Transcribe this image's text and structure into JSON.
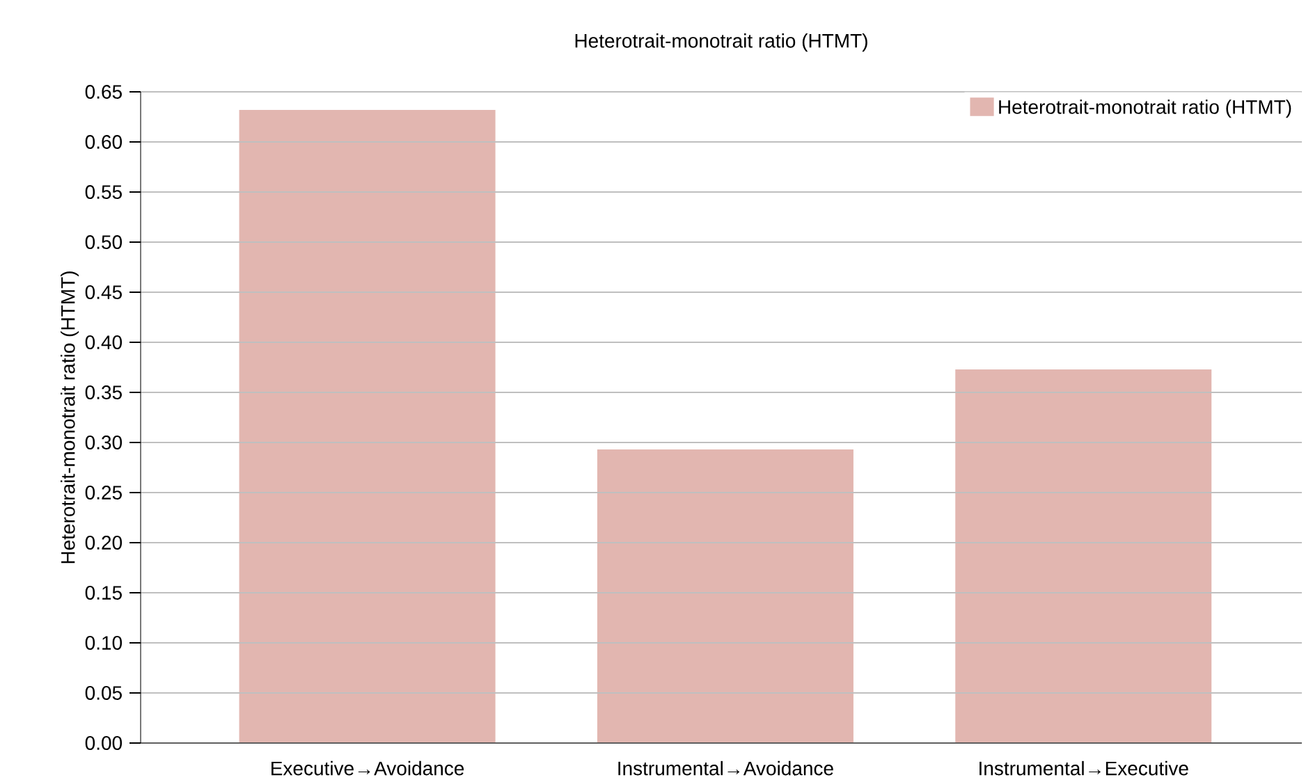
{
  "chart_data": {
    "type": "bar",
    "title": "Heterotrait-monotrait ratio (HTMT)",
    "ylabel": "Heterotrait-monotrait ratio (HTMT)",
    "categories": [
      "Executive→Avoidance",
      "Instrumental→Avoidance",
      "Instrumental→Executive"
    ],
    "series": [
      {
        "name": "Heterotrait-monotrait ratio (HTMT)",
        "color": "#e2b6b0",
        "values": [
          0.632,
          0.293,
          0.373
        ]
      }
    ],
    "ylim": [
      0,
      0.65
    ],
    "yticks": [
      {
        "value": 0,
        "label": "0.00"
      },
      {
        "value": 0.05,
        "label": "0.05"
      },
      {
        "value": 0.1,
        "label": "0.10"
      },
      {
        "value": 0.15,
        "label": "0.15"
      },
      {
        "value": 0.2,
        "label": "0.20"
      },
      {
        "value": 0.25,
        "label": "0.25"
      },
      {
        "value": 0.3,
        "label": "0.30"
      },
      {
        "value": 0.35,
        "label": "0.35"
      },
      {
        "value": 0.4,
        "label": "0.40"
      },
      {
        "value": 0.45,
        "label": "0.45"
      },
      {
        "value": 0.5,
        "label": "0.50"
      },
      {
        "value": 0.55,
        "label": "0.55"
      },
      {
        "value": 0.6,
        "label": "0.60"
      },
      {
        "value": 0.65,
        "label": "0.65"
      }
    ],
    "grid": "y",
    "legend": "top right"
  }
}
